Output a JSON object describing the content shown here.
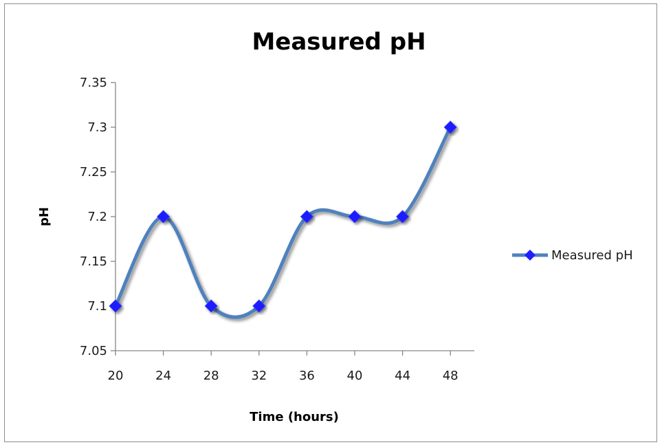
{
  "chart_data": {
    "type": "line",
    "title": "Measured pH",
    "xlabel": "Time (hours)",
    "ylabel": "pH",
    "x": [
      20,
      24,
      28,
      32,
      36,
      40,
      44,
      48
    ],
    "series": [
      {
        "name": "Measured pH",
        "values": [
          7.1,
          7.2,
          7.1,
          7.1,
          7.2,
          7.2,
          7.2,
          7.3
        ],
        "color": "#4f81bd",
        "marker_color": "#1f1fff"
      }
    ],
    "ylim": [
      7.05,
      7.35
    ],
    "y_ticks": [
      "7.05",
      "7.1",
      "7.15",
      "7.2",
      "7.25",
      "7.3",
      "7.35"
    ],
    "x_ticks": [
      "20",
      "24",
      "28",
      "32",
      "36",
      "40",
      "44",
      "48"
    ],
    "smoothed": true,
    "grid": false,
    "legend_position": "right"
  }
}
